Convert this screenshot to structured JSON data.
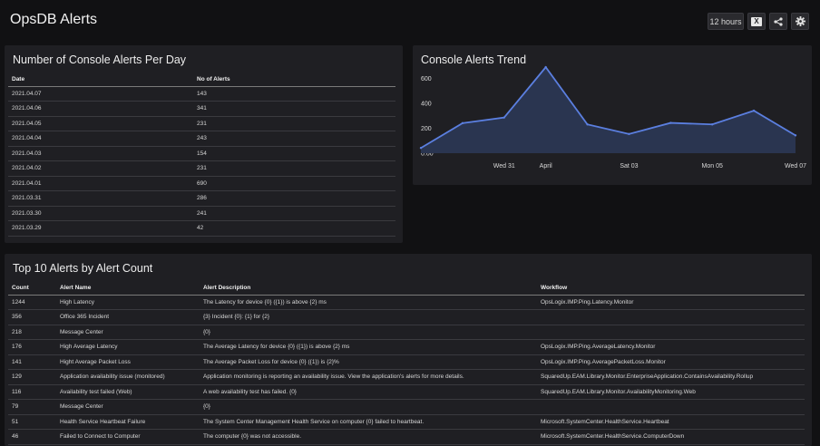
{
  "dashboard": {
    "title": "OpsDB Alerts"
  },
  "toolbar": {
    "time_range": "12 hours",
    "excel_label": "X",
    "share_icon": "share-icon",
    "settings_icon": "gear-icon"
  },
  "alerts_per_day": {
    "title": "Number of Console Alerts Per Day",
    "columns": [
      "Date",
      "No of Alerts"
    ],
    "rows": [
      [
        "2021.04.07",
        "143"
      ],
      [
        "2021.04.06",
        "341"
      ],
      [
        "2021.04.05",
        "231"
      ],
      [
        "2021.04.04",
        "243"
      ],
      [
        "2021.04.03",
        "154"
      ],
      [
        "2021.04.02",
        "231"
      ],
      [
        "2021.04.01",
        "690"
      ],
      [
        "2021.03.31",
        "286"
      ],
      [
        "2021.03.30",
        "241"
      ],
      [
        "2021.03.29",
        "42"
      ]
    ]
  },
  "trend": {
    "title": "Console Alerts Trend",
    "colors": {
      "line": "#5b7fe0",
      "fill": "#2a3550"
    }
  },
  "chart_data": {
    "type": "area",
    "title": "Console Alerts Trend",
    "x": [
      "2021-03-29",
      "2021-03-30",
      "2021-03-31",
      "2021-04-01",
      "2021-04-02",
      "2021-04-03",
      "2021-04-04",
      "2021-04-05",
      "2021-04-06",
      "2021-04-07"
    ],
    "values": [
      42,
      241,
      286,
      690,
      231,
      154,
      243,
      231,
      341,
      143
    ],
    "y_ticks": [
      "0.00",
      "200",
      "400",
      "600"
    ],
    "x_ticks": [
      "Wed 31",
      "April",
      "Sat 03",
      "Mon 05",
      "Wed 07"
    ],
    "ylim": [
      0,
      720
    ],
    "grid": false
  },
  "top_alerts": {
    "title": "Top 10 Alerts by Alert Count",
    "columns": [
      "Count",
      "Alert Name",
      "Alert Description",
      "Workflow"
    ],
    "rows": [
      [
        "1244",
        "High Latency",
        "The Latency for device {0} ({1}) is above {2} ms",
        "OpsLogix.IMP.Ping.Latency.Monitor"
      ],
      [
        "356",
        "Office 365 Incident",
        "{3} Incident {0}: {1} for {2}",
        ""
      ],
      [
        "218",
        "Message Center",
        "{0}",
        ""
      ],
      [
        "176",
        "High Average Latency",
        "The Average Latency for device {0} ({1}) is above {2} ms",
        "OpsLogix.IMP.Ping.AverageLatency.Monitor"
      ],
      [
        "141",
        "Hight Average Packet Loss",
        "The Average Packet Loss for device {0} ({1}) is {2}%",
        "OpsLogix.IMP.Ping.AveragePacketLoss.Monitor"
      ],
      [
        "129",
        "Application availability issue (monitored)",
        "Application monitoring is reporting an availability issue. View the application's alerts for more details.",
        "SquaredUp.EAM.Library.Monitor.EnterpriseApplication.ContainsAvailability.Rollup"
      ],
      [
        "116",
        "Availability test failed (Web)",
        "A web availability test has failed. {0}",
        "SquaredUp.EAM.Library.Monitor.AvailabilityMonitoring.Web"
      ],
      [
        "79",
        "Message Center",
        "{0}",
        ""
      ],
      [
        "51",
        "Health Service Heartbeat Failure",
        "The System Center Management Health Service on computer {0} failed to heartbeat.",
        "Microsoft.SystemCenter.HealthService.Heartbeat"
      ],
      [
        "46",
        "Failed to Connect to Computer",
        "The computer {0} was not accessible.",
        "Microsoft.SystemCenter.HealthService.ComputerDown"
      ]
    ]
  }
}
